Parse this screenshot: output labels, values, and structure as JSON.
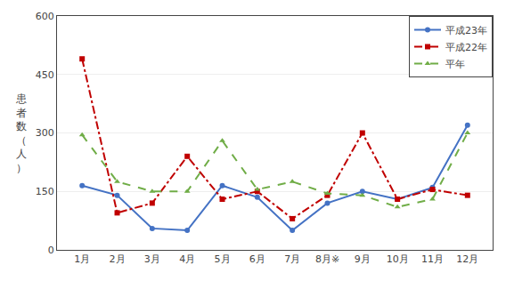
{
  "chart_data": {
    "type": "line",
    "y_label": "患者数（人）",
    "categories": [
      "1月",
      "2月",
      "3月",
      "4月",
      "5月",
      "6月",
      "7月",
      "8月※",
      "9月",
      "10月",
      "11月",
      "12月"
    ],
    "series": [
      {
        "name": "平成23年",
        "color": "#4472c4",
        "marker": "circle",
        "line_style": "solid",
        "values": [
          165,
          140,
          55,
          50,
          165,
          135,
          50,
          120,
          150,
          130,
          160,
          320
        ]
      },
      {
        "name": "平成22年",
        "color": "#c00000",
        "marker": "square",
        "line_style": "dashdot",
        "values": [
          490,
          95,
          120,
          240,
          130,
          150,
          80,
          140,
          300,
          130,
          155,
          140
        ]
      },
      {
        "name": "平年",
        "color": "#70ad47",
        "marker": "triangle-up",
        "line_style": "dash",
        "values": [
          295,
          175,
          150,
          150,
          280,
          155,
          175,
          145,
          140,
          110,
          130,
          300
        ]
      }
    ],
    "ylim": [
      0,
      600
    ],
    "yticks": [
      0,
      150,
      300,
      450,
      600
    ],
    "grid": true,
    "legend": "upper right"
  }
}
